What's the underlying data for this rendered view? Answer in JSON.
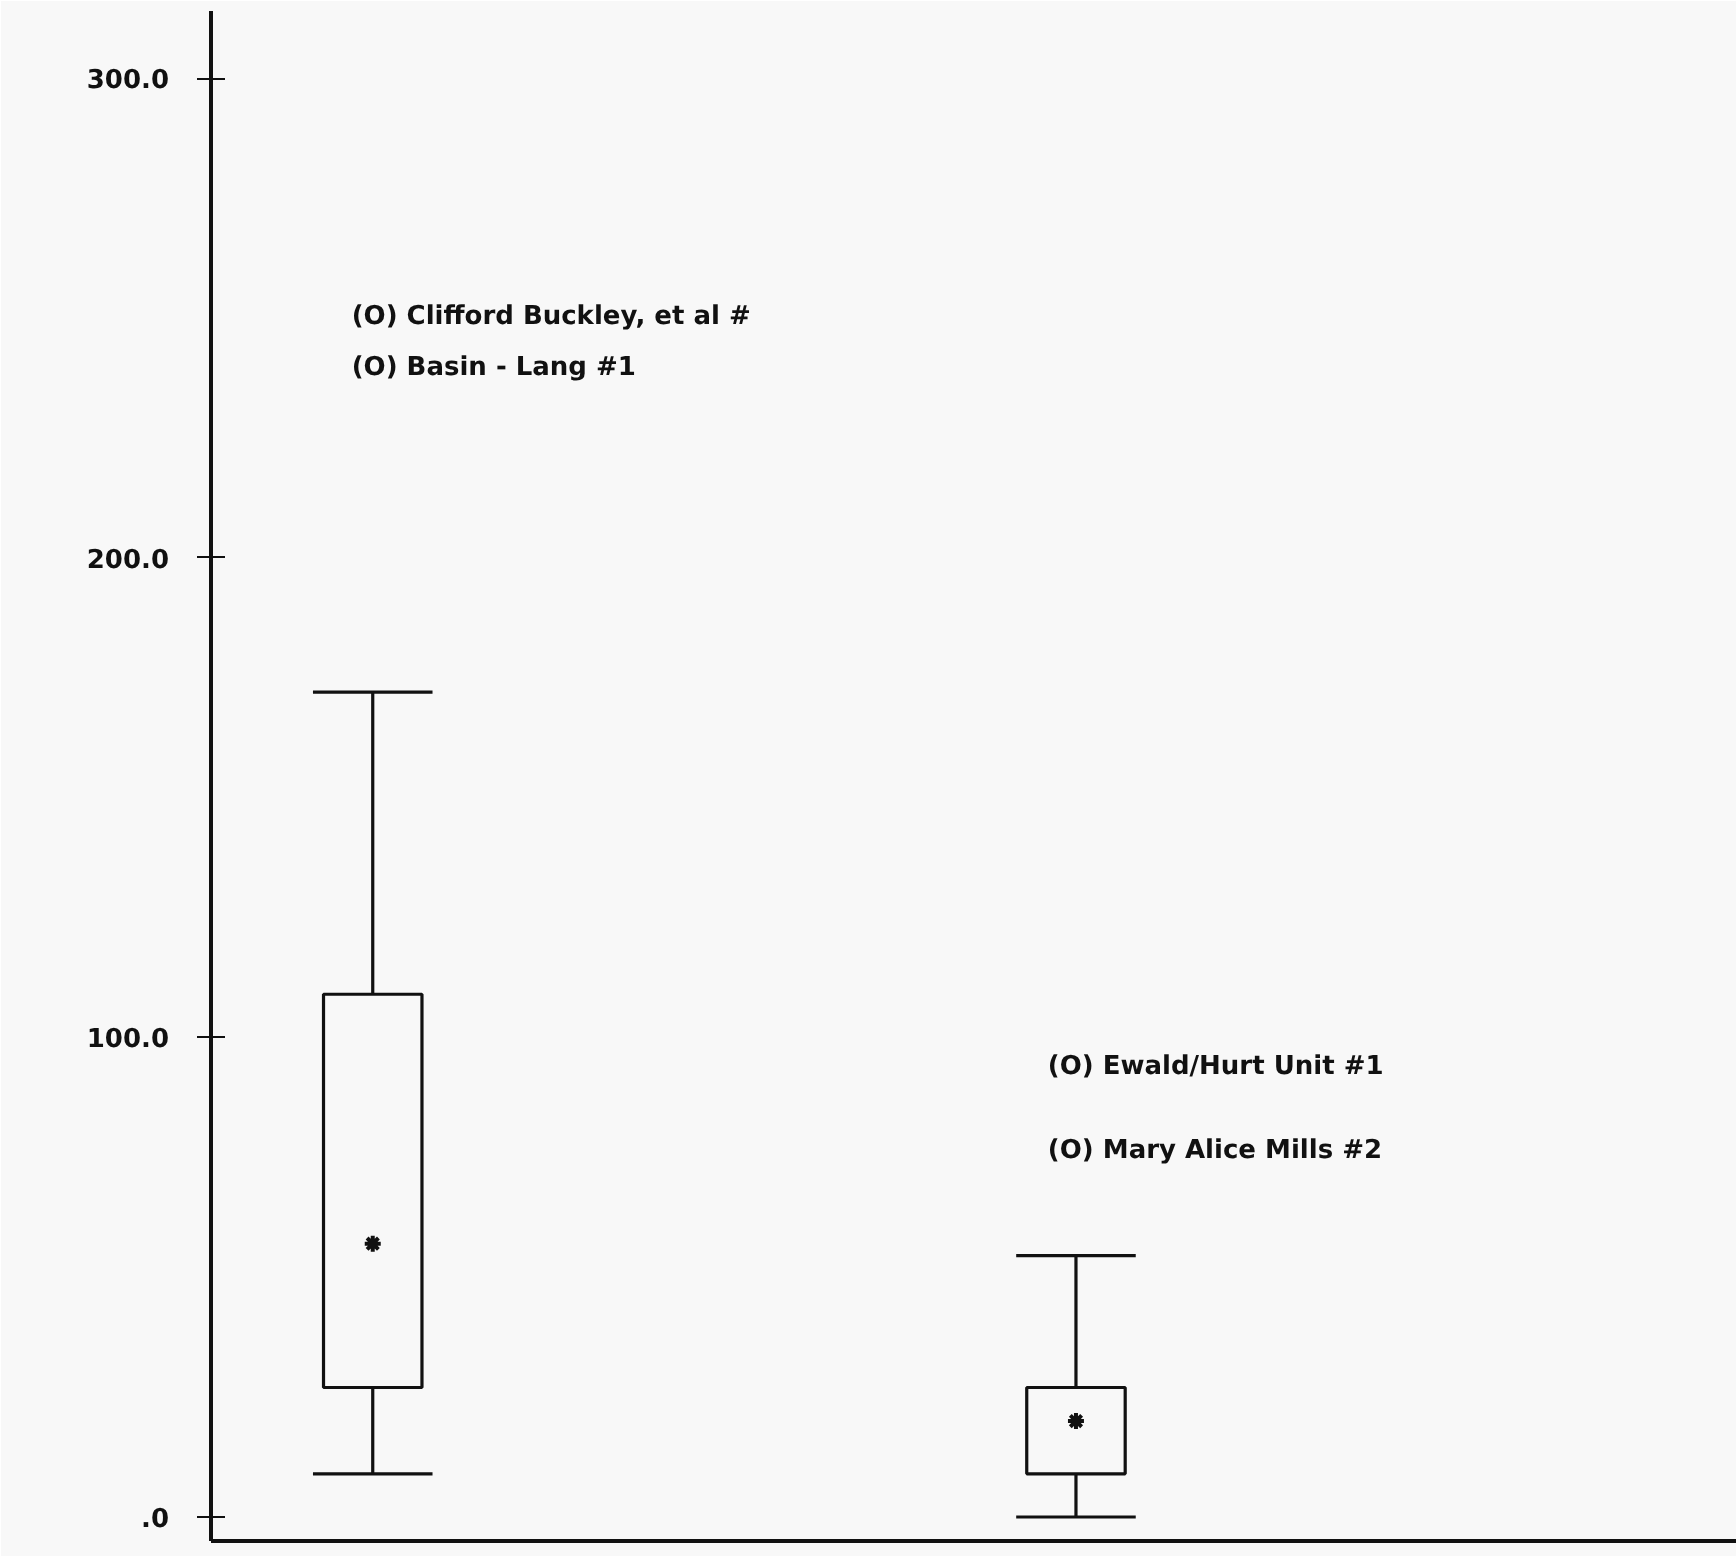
{
  "chart_data": {
    "type": "box",
    "categories": [
      null,
      null
    ],
    "boxes": [
      {
        "low": 9,
        "q1": 27,
        "median": 57,
        "q3": 109,
        "high": 172
      },
      {
        "low": 0,
        "q1": 9,
        "median": 20,
        "q3": 27,
        "high": 54.5
      }
    ],
    "ylim": [
      -5,
      314
    ],
    "yticks": [
      {
        "value": 0,
        "label": ".0"
      },
      {
        "value": 100,
        "label": "100.0"
      },
      {
        "value": 200,
        "label": "200.0"
      },
      {
        "value": 300,
        "label": "300.0"
      }
    ],
    "tick_labels": "y",
    "grid": false,
    "marker": "star",
    "annotations": [
      "(O) Clifford Buckley, et al #",
      "(O) Basin - Lang #1",
      "(O) Ewald/Hurt Unit #1",
      "(O) Mary Alice Mills #2"
    ]
  }
}
